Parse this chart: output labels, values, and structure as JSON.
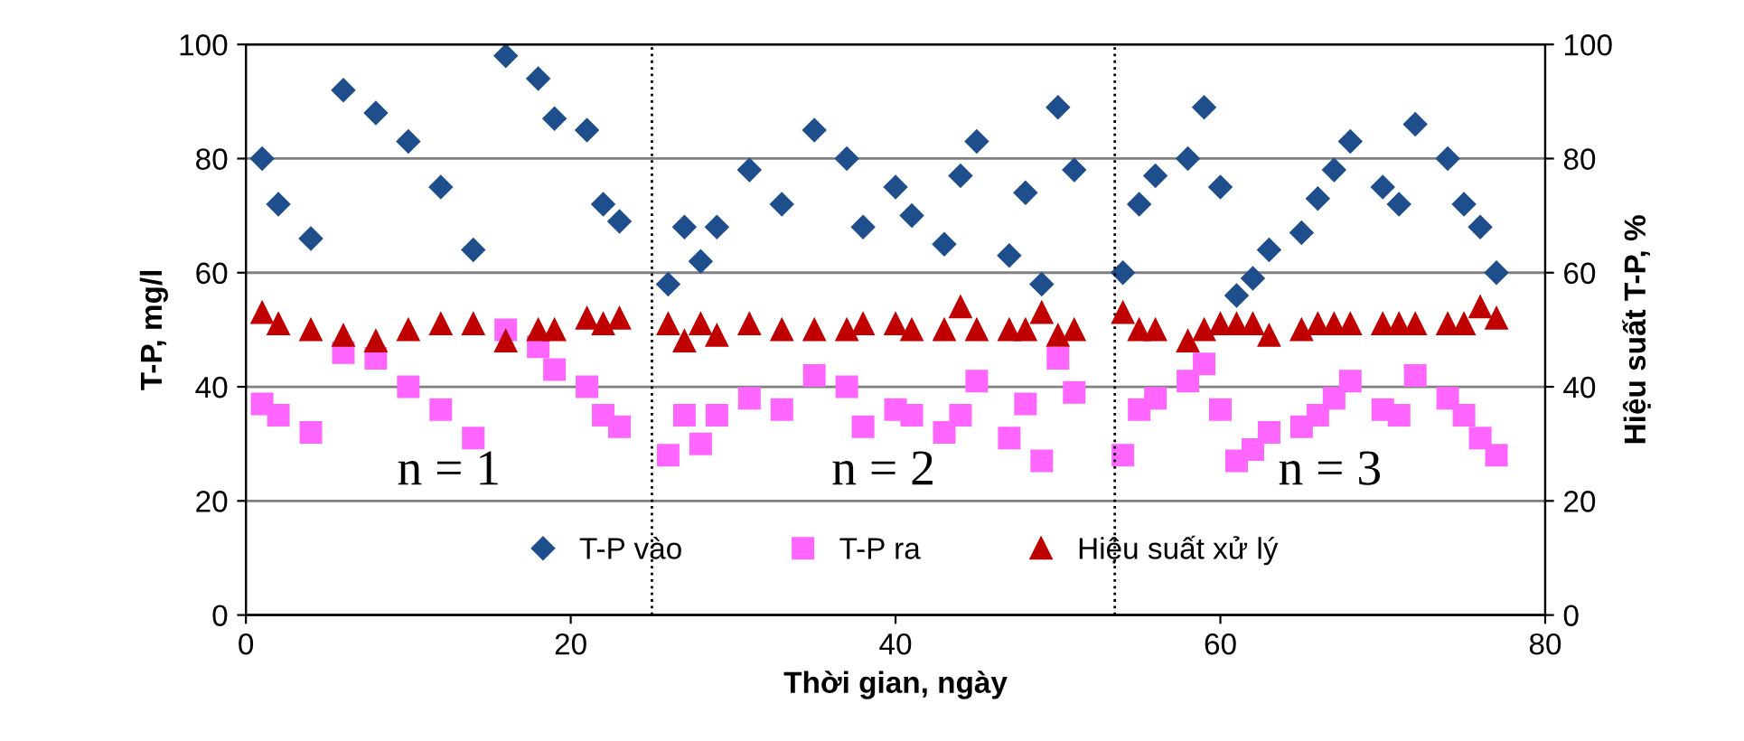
{
  "chart_data": {
    "type": "scatter",
    "xlabel": "Thời gian, ngày",
    "ylabel": "T-P, mg/l",
    "y2label": "Hiệu suất T-P, %",
    "xlim": [
      0,
      80
    ],
    "xticks": [
      0,
      20,
      40,
      60,
      80
    ],
    "ylim": [
      0,
      100
    ],
    "yticks": [
      0,
      20,
      40,
      60,
      80,
      100
    ],
    "y2lim": [
      0,
      100
    ],
    "y2ticks": [
      0,
      20,
      40,
      60,
      80,
      100
    ],
    "grid": "y",
    "legend": "bottom",
    "ref_lines": [
      {
        "axis": "x",
        "value": 25,
        "line_style": "dotted",
        "color": "#000000"
      },
      {
        "axis": "x",
        "value": 53.5,
        "line_style": "dotted",
        "color": "#000000"
      }
    ],
    "annotations": [
      "n = 1",
      "n = 2",
      "n = 3"
    ],
    "series": [
      {
        "name": "T-P vào",
        "color": "#1f4e8c",
        "marker": "diamond",
        "x": [
          1,
          2,
          4,
          6,
          8,
          10,
          12,
          14,
          16,
          18,
          19,
          21,
          22,
          23,
          26,
          27,
          28,
          29,
          31,
          33,
          35,
          37,
          38,
          40,
          41,
          43,
          44,
          45,
          47,
          48,
          49,
          50,
          51,
          54,
          55,
          56,
          58,
          59,
          60,
          61,
          62,
          63,
          65,
          66,
          67,
          68,
          70,
          71,
          72,
          74,
          75,
          76,
          77
        ],
        "values": [
          80,
          72,
          66,
          92,
          88,
          83,
          75,
          64,
          98,
          94,
          87,
          85,
          72,
          69,
          58,
          68,
          62,
          68,
          78,
          72,
          85,
          80,
          68,
          75,
          70,
          65,
          77,
          83,
          63,
          74,
          58,
          89,
          78,
          60,
          72,
          77,
          80,
          89,
          75,
          56,
          59,
          64,
          67,
          73,
          78,
          83,
          75,
          72,
          86,
          80,
          72,
          68,
          60
        ]
      },
      {
        "name": "T-P ra",
        "color": "#ff66ff",
        "marker": "square",
        "x": [
          1,
          2,
          4,
          6,
          8,
          10,
          12,
          14,
          16,
          18,
          19,
          21,
          22,
          23,
          26,
          27,
          28,
          29,
          31,
          33,
          35,
          37,
          38,
          40,
          41,
          43,
          44,
          45,
          47,
          48,
          49,
          50,
          51,
          54,
          55,
          56,
          58,
          59,
          60,
          61,
          62,
          63,
          65,
          66,
          67,
          68,
          70,
          71,
          72,
          74,
          75,
          76,
          77
        ],
        "values": [
          37,
          35,
          32,
          46,
          45,
          40,
          36,
          31,
          50,
          47,
          43,
          40,
          35,
          33,
          28,
          35,
          30,
          35,
          38,
          36,
          42,
          40,
          33,
          36,
          35,
          32,
          35,
          41,
          31,
          37,
          27,
          45,
          39,
          28,
          36,
          38,
          41,
          44,
          36,
          27,
          29,
          32,
          33,
          35,
          38,
          41,
          36,
          35,
          42,
          38,
          35,
          31,
          28
        ]
      },
      {
        "name": "Hiệu suất xử lý",
        "color": "#c00000",
        "marker": "triangle",
        "axis": "y2",
        "x": [
          1,
          2,
          4,
          6,
          8,
          10,
          12,
          14,
          16,
          18,
          19,
          21,
          22,
          23,
          26,
          27,
          28,
          29,
          31,
          33,
          35,
          37,
          38,
          40,
          41,
          43,
          44,
          45,
          47,
          48,
          49,
          50,
          51,
          54,
          55,
          56,
          58,
          59,
          60,
          61,
          62,
          63,
          65,
          66,
          67,
          68,
          70,
          71,
          72,
          74,
          75,
          76,
          77
        ],
        "values": [
          53,
          51,
          50,
          49,
          48,
          50,
          51,
          51,
          48,
          50,
          50,
          52,
          51,
          52,
          51,
          48,
          51,
          49,
          51,
          50,
          50,
          50,
          51,
          51,
          50,
          50,
          54,
          50,
          50,
          50,
          53,
          49,
          50,
          53,
          50,
          50,
          48,
          50,
          51,
          51,
          51,
          49,
          50,
          51,
          51,
          51,
          51,
          51,
          51,
          51,
          51,
          54,
          52
        ]
      }
    ]
  }
}
